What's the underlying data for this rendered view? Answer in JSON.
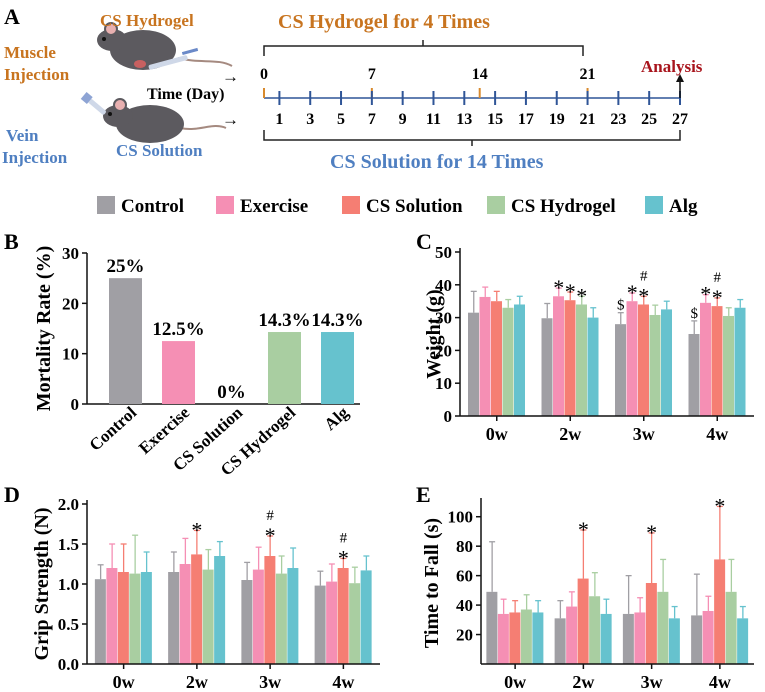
{
  "colors": {
    "control": "#a09fa4",
    "exercise": "#f58fb4",
    "cs_solution": "#f57e73",
    "cs_hydrogel": "#a9cea1",
    "alg": "#66c2ce",
    "brown": "#c8741f",
    "blue": "#4f7fc1",
    "dark_red": "#a8141c",
    "axis_blue": "#2f5597",
    "tick_orange": "#d88a2e"
  },
  "panel_a": {
    "label": "A",
    "hydrogel_title": "CS Hydrogel for 4 Times",
    "hydrogel_mouse_label": "CS Hydrogel",
    "muscle_line1": "Muscle",
    "muscle_line2": "Injection",
    "time_label": "Time (Day)",
    "analysis": "Analysis",
    "vein_line1": "Vein",
    "vein_line2": "Injection",
    "solution_mouse_label": "CS Solution",
    "solution_title": "CS Solution for 14 Times",
    "top_days": [
      "0",
      "7",
      "14",
      "21"
    ],
    "bottom_days": [
      "1",
      "3",
      "5",
      "7",
      "9",
      "11",
      "13",
      "15",
      "17",
      "19",
      "21",
      "23",
      "25",
      "27"
    ],
    "top_day_values": [
      0,
      7,
      14,
      21
    ],
    "bottom_day_values": [
      1,
      3,
      5,
      7,
      9,
      11,
      13,
      15,
      17,
      19,
      21,
      23,
      25,
      27
    ],
    "arrow": "→"
  },
  "legend": {
    "items": [
      {
        "label": "Control",
        "color_key": "control"
      },
      {
        "label": "Exercise",
        "color_key": "exercise"
      },
      {
        "label": "CS Solution",
        "color_key": "cs_solution"
      },
      {
        "label": "CS Hydrogel",
        "color_key": "cs_hydrogel"
      },
      {
        "label": "Alg",
        "color_key": "alg"
      }
    ]
  },
  "chart_data": [
    {
      "id": "B",
      "label": "B",
      "type": "bar",
      "title": "",
      "ylabel": "Mortality Rate (%)",
      "ylim": [
        0,
        30
      ],
      "yticks": [
        0,
        10,
        20,
        30
      ],
      "categories": [
        "Control",
        "Exercise",
        "CS Solution",
        "CS Hydrogel",
        "Alg"
      ],
      "values": [
        25,
        12.5,
        0,
        14.3,
        14.3
      ],
      "value_labels": [
        "25%",
        "12.5%",
        "0%",
        "14.3%",
        "14.3%"
      ]
    },
    {
      "id": "C",
      "label": "C",
      "type": "bar",
      "ylabel": "Weight (g)",
      "ylim": [
        0,
        50
      ],
      "yticks": [
        0,
        10,
        20,
        30,
        40,
        50
      ],
      "categories": [
        "0w",
        "2w",
        "3w",
        "4w"
      ],
      "series": [
        {
          "name": "Control",
          "values": [
            31.5,
            29.8,
            28.0,
            25.0
          ],
          "errors": [
            6.5,
            4.5,
            3.5,
            4.0
          ]
        },
        {
          "name": "Exercise",
          "values": [
            36.3,
            36.5,
            35.0,
            34.5
          ],
          "errors": [
            3.0,
            2.5,
            2.5,
            2.5
          ]
        },
        {
          "name": "CS Solution",
          "values": [
            35.0,
            35.3,
            34.0,
            33.5
          ],
          "errors": [
            3.0,
            2.5,
            2.5,
            2.5
          ]
        },
        {
          "name": "CS Hydrogel",
          "values": [
            33.0,
            34.0,
            30.8,
            30.5
          ],
          "errors": [
            2.5,
            2.5,
            3.0,
            2.5
          ]
        },
        {
          "name": "Alg",
          "values": [
            34.0,
            30.0,
            32.5,
            33.0
          ],
          "errors": [
            2.5,
            3.0,
            2.5,
            2.5
          ]
        }
      ],
      "annotations": [
        {
          "text": "*",
          "category": 1,
          "series": 1
        },
        {
          "text": "*",
          "category": 1,
          "series": 2
        },
        {
          "text": "*",
          "category": 1,
          "series": 3
        },
        {
          "text": "$",
          "category": 2,
          "series": 0
        },
        {
          "text": "*",
          "category": 2,
          "series": 1
        },
        {
          "text": "#",
          "category": 2,
          "series": 2,
          "level": 1
        },
        {
          "text": "*",
          "category": 2,
          "series": 2
        },
        {
          "text": "$",
          "category": 3,
          "series": 0
        },
        {
          "text": "*",
          "category": 3,
          "series": 1
        },
        {
          "text": "#",
          "category": 3,
          "series": 2,
          "level": 1
        },
        {
          "text": "*",
          "category": 3,
          "series": 2
        }
      ]
    },
    {
      "id": "D",
      "label": "D",
      "type": "bar",
      "ylabel": "Grip Strength (N)",
      "ylim": [
        0,
        2.0
      ],
      "yticks": [
        0.0,
        0.5,
        1.0,
        1.5,
        2.0
      ],
      "ytick_labels": [
        "0.0",
        "0.5",
        "1.0",
        "1.5",
        "2.0"
      ],
      "categories": [
        "0w",
        "2w",
        "3w",
        "4w"
      ],
      "series": [
        {
          "name": "Control",
          "values": [
            1.06,
            1.15,
            1.05,
            0.98
          ],
          "errors": [
            0.18,
            0.25,
            0.22,
            0.18
          ]
        },
        {
          "name": "Exercise",
          "values": [
            1.2,
            1.25,
            1.18,
            1.03
          ],
          "errors": [
            0.3,
            0.32,
            0.28,
            0.22
          ]
        },
        {
          "name": "CS Solution",
          "values": [
            1.15,
            1.37,
            1.35,
            1.2
          ],
          "errors": [
            0.35,
            0.3,
            0.25,
            0.12
          ]
        },
        {
          "name": "CS Hydrogel",
          "values": [
            1.13,
            1.18,
            1.13,
            1.01
          ],
          "errors": [
            0.48,
            0.25,
            0.22,
            0.2
          ]
        },
        {
          "name": "Alg",
          "values": [
            1.15,
            1.35,
            1.2,
            1.17
          ],
          "errors": [
            0.25,
            0.18,
            0.25,
            0.18
          ]
        }
      ],
      "annotations": [
        {
          "text": "*",
          "category": 1,
          "series": 2
        },
        {
          "text": "#",
          "category": 2,
          "series": 2,
          "level": 1
        },
        {
          "text": "*",
          "category": 2,
          "series": 2
        },
        {
          "text": "#",
          "category": 3,
          "series": 2,
          "level": 1
        },
        {
          "text": "*",
          "category": 3,
          "series": 2
        }
      ]
    },
    {
      "id": "E",
      "label": "E",
      "type": "bar",
      "ylabel": "Time to Fall (s)",
      "ylim": [
        0,
        110
      ],
      "yticks": [
        20,
        40,
        60,
        80,
        100
      ],
      "categories": [
        "0w",
        "2w",
        "3w",
        "4w"
      ],
      "series": [
        {
          "name": "Control",
          "values": [
            49,
            31,
            34,
            33
          ],
          "errors": [
            34,
            12,
            26,
            28
          ]
        },
        {
          "name": "Exercise",
          "values": [
            34,
            39,
            35,
            36
          ],
          "errors": [
            10,
            10,
            10,
            10
          ]
        },
        {
          "name": "CS Solution",
          "values": [
            35,
            58,
            55,
            71
          ],
          "errors": [
            8,
            33,
            34,
            36
          ]
        },
        {
          "name": "CS Hydrogel",
          "values": [
            37,
            46,
            49,
            49
          ],
          "errors": [
            10,
            16,
            22,
            22
          ]
        },
        {
          "name": "Alg",
          "values": [
            35,
            34,
            31,
            31
          ],
          "errors": [
            8,
            10,
            8,
            8
          ]
        }
      ],
      "annotations": [
        {
          "text": "*",
          "category": 1,
          "series": 2
        },
        {
          "text": "*",
          "category": 2,
          "series": 2
        },
        {
          "text": "*",
          "category": 3,
          "series": 2
        }
      ]
    }
  ]
}
